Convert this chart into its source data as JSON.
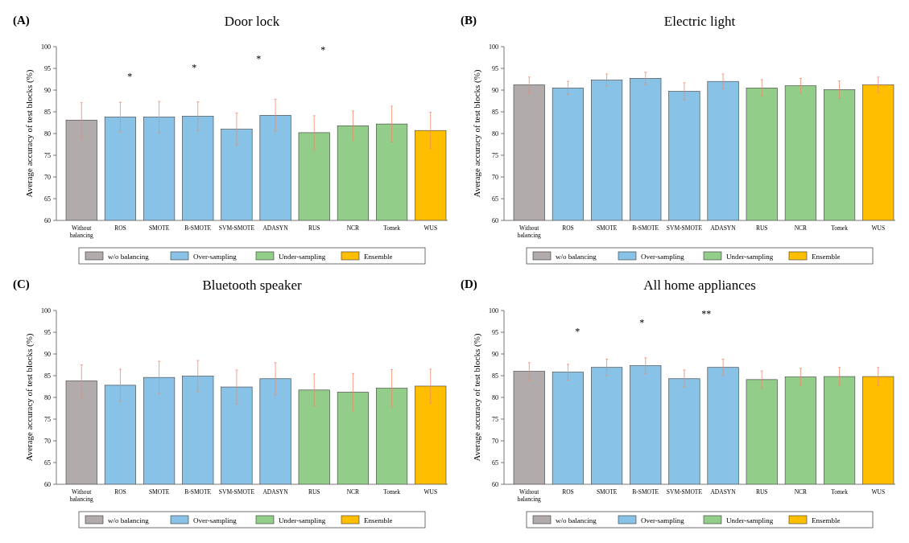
{
  "chart_data": [
    {
      "type": "bar",
      "title": "Door lock",
      "ylabel": "Average accuracy of test blocks (%)",
      "categories": [
        "Without balancing",
        "ROS",
        "SMOTE",
        "B-SMOTE",
        "SVM-SMOTE",
        "ADASYN",
        "RUS",
        "NCR",
        "Tomek",
        "WUS"
      ],
      "ylim": [
        60,
        100
      ],
      "yticks": [
        60,
        65,
        70,
        75,
        80,
        85,
        90,
        95,
        100
      ],
      "legend": "bottom",
      "annotations": [
        "(A)",
        "*",
        "*",
        "*",
        "*"
      ],
      "series": [
        {
          "name": "w/o balancing",
          "color": "#b1abab",
          "values": [
            83.1,
            null,
            null,
            null,
            null,
            null,
            null,
            null,
            null,
            null
          ],
          "errors": [
            4,
            null,
            null,
            null,
            null,
            null,
            null,
            null,
            null,
            null
          ]
        },
        {
          "name": "Over-sampling",
          "color": "#88c2e6",
          "values": [
            null,
            83.8,
            83.8,
            84.0,
            81.0,
            84.2,
            null,
            null,
            null,
            null
          ],
          "errors": [
            null,
            3.4,
            3.6,
            3.3,
            3.7,
            3.7,
            null,
            null,
            null,
            null
          ]
        },
        {
          "name": "Under-sampling",
          "color": "#93cd8a",
          "values": [
            null,
            null,
            null,
            null,
            null,
            null,
            80.2,
            81.8,
            82.2,
            null
          ],
          "errors": [
            null,
            null,
            null,
            null,
            null,
            null,
            3.9,
            3.4,
            4.1,
            null
          ]
        },
        {
          "name": "Ensemble",
          "color": "#ffbf00",
          "values": [
            null,
            null,
            null,
            null,
            null,
            null,
            null,
            null,
            null,
            80.7
          ],
          "errors": [
            null,
            null,
            null,
            null,
            null,
            null,
            null,
            null,
            null,
            4.2
          ]
        }
      ]
    },
    {
      "type": "bar",
      "title": "Electric light",
      "ylabel": "Average accuracy of test blocks (%)",
      "categories": [
        "Without balancing",
        "ROS",
        "SMOTE",
        "B-SMOTE",
        "SVM-SMOTE",
        "ADASYN",
        "RUS",
        "NCR",
        "Tomek",
        "WUS"
      ],
      "ylim": [
        60,
        100
      ],
      "yticks": [
        60,
        65,
        70,
        75,
        80,
        85,
        90,
        95,
        100
      ],
      "legend": "bottom",
      "annotations": [
        "(B)"
      ],
      "series": [
        {
          "name": "w/o balancing",
          "color": "#b1abab",
          "values": [
            91.2,
            null,
            null,
            null,
            null,
            null,
            null,
            null,
            null,
            null
          ],
          "errors": [
            1.8,
            null,
            null,
            null,
            null,
            null,
            null,
            null,
            null,
            null
          ]
        },
        {
          "name": "Over-sampling",
          "color": "#88c2e6",
          "values": [
            null,
            90.5,
            92.3,
            92.7,
            89.7,
            92.0,
            null,
            null,
            null,
            null
          ],
          "errors": [
            null,
            1.5,
            1.4,
            1.4,
            2.0,
            1.7,
            null,
            null,
            null,
            null
          ]
        },
        {
          "name": "Under-sampling",
          "color": "#93cd8a",
          "values": [
            null,
            null,
            null,
            null,
            null,
            null,
            90.5,
            91.0,
            90.1,
            null
          ],
          "errors": [
            null,
            null,
            null,
            null,
            null,
            null,
            1.9,
            1.7,
            2.0,
            null
          ]
        },
        {
          "name": "Ensemble",
          "color": "#ffbf00",
          "values": [
            null,
            null,
            null,
            null,
            null,
            null,
            null,
            null,
            null,
            91.2
          ],
          "errors": [
            null,
            null,
            null,
            null,
            null,
            null,
            null,
            null,
            null,
            1.8
          ]
        }
      ]
    },
    {
      "type": "bar",
      "title": "Bluetooth speaker",
      "ylabel": "Average accuracy of test blocks (%)",
      "categories": [
        "Without balancing",
        "ROS",
        "SMOTE",
        "B-SMOTE",
        "SVM-SMOTE",
        "ADASYN",
        "RUS",
        "NCR",
        "Tomek",
        "WUS"
      ],
      "ylim": [
        60,
        100
      ],
      "yticks": [
        60,
        65,
        70,
        75,
        80,
        85,
        90,
        95,
        100
      ],
      "legend": "bottom",
      "annotations": [
        "(C)"
      ],
      "series": [
        {
          "name": "w/o balancing",
          "color": "#b1abab",
          "values": [
            83.8,
            null,
            null,
            null,
            null,
            null,
            null,
            null,
            null,
            null
          ],
          "errors": [
            3.7,
            null,
            null,
            null,
            null,
            null,
            null,
            null,
            null,
            null
          ]
        },
        {
          "name": "Over-sampling",
          "color": "#88c2e6",
          "values": [
            null,
            82.8,
            84.6,
            84.9,
            82.4,
            84.3,
            null,
            null,
            null,
            null
          ],
          "errors": [
            null,
            3.7,
            3.7,
            3.6,
            3.9,
            3.7,
            null,
            null,
            null,
            null
          ]
        },
        {
          "name": "Under-sampling",
          "color": "#93cd8a",
          "values": [
            null,
            null,
            null,
            null,
            null,
            null,
            81.7,
            81.2,
            82.1,
            null
          ],
          "errors": [
            null,
            null,
            null,
            null,
            null,
            null,
            3.7,
            4.3,
            4.3,
            null
          ]
        },
        {
          "name": "Ensemble",
          "color": "#ffbf00",
          "values": [
            null,
            null,
            null,
            null,
            null,
            null,
            null,
            null,
            null,
            82.6
          ],
          "errors": [
            null,
            null,
            null,
            null,
            null,
            null,
            null,
            null,
            null,
            3.9
          ]
        }
      ]
    },
    {
      "type": "bar",
      "title": "All home appliances",
      "ylabel": "Average accuracy of test blocks (%)",
      "categories": [
        "Without balancing",
        "ROS",
        "SMOTE",
        "B-SMOTE",
        "SVM-SMOTE",
        "ADASYN",
        "RUS",
        "NCR",
        "Tomek",
        "WUS"
      ],
      "ylim": [
        60,
        100
      ],
      "yticks": [
        60,
        65,
        70,
        75,
        80,
        85,
        90,
        95,
        100
      ],
      "legend": "bottom",
      "annotations": [
        "(D)",
        "*",
        "*",
        "**"
      ],
      "series": [
        {
          "name": "w/o balancing",
          "color": "#b1abab",
          "values": [
            86.0,
            null,
            null,
            null,
            null,
            null,
            null,
            null,
            null,
            null
          ],
          "errors": [
            2.0,
            null,
            null,
            null,
            null,
            null,
            null,
            null,
            null,
            null
          ]
        },
        {
          "name": "Over-sampling",
          "color": "#88c2e6",
          "values": [
            null,
            85.8,
            86.9,
            87.3,
            84.3,
            86.9,
            null,
            null,
            null,
            null
          ],
          "errors": [
            null,
            1.8,
            1.9,
            1.8,
            2.0,
            1.9,
            null,
            null,
            null,
            null
          ]
        },
        {
          "name": "Under-sampling",
          "color": "#93cd8a",
          "values": [
            null,
            null,
            null,
            null,
            null,
            null,
            84.1,
            84.7,
            84.8,
            null
          ],
          "errors": [
            null,
            null,
            null,
            null,
            null,
            null,
            2.0,
            2.0,
            2.1,
            null
          ]
        },
        {
          "name": "Ensemble",
          "color": "#ffbf00",
          "values": [
            null,
            null,
            null,
            null,
            null,
            null,
            null,
            null,
            null,
            84.8
          ],
          "errors": [
            null,
            null,
            null,
            null,
            null,
            null,
            null,
            null,
            null,
            2.1
          ]
        }
      ]
    }
  ]
}
